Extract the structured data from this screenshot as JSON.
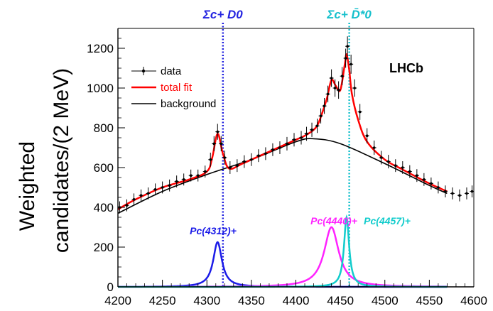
{
  "chart_data": {
    "type": "scatter",
    "title": "",
    "xlabel": "",
    "ylabel_line1": "Weighted",
    "ylabel_line2": "candidates/(2 MeV)",
    "xlim": [
      4200,
      4600
    ],
    "ylim": [
      0,
      1300
    ],
    "xticks": [
      4200,
      4250,
      4300,
      4350,
      4400,
      4450,
      4500,
      4550,
      4600
    ],
    "yticks": [
      0,
      200,
      400,
      600,
      800,
      1000,
      1200
    ],
    "grid": false,
    "legend": {
      "placement": "top-left",
      "entries": [
        {
          "label": "data",
          "color": "#000000",
          "style": "marker"
        },
        {
          "label": "total fit",
          "color": "#ff0000",
          "style": "line"
        },
        {
          "label": "background",
          "color": "#000000",
          "style": "line"
        }
      ]
    },
    "experiment_label": "LHCb",
    "thresholds": [
      {
        "label": "Σc+ D0",
        "x": 4318,
        "color": "#2323e0"
      },
      {
        "label": "Σc+ D̄*0",
        "x": 4460,
        "color": "#15c0cc"
      }
    ],
    "resonances": [
      {
        "label": "Pc(4312)+",
        "mass": 4312,
        "peak": 225,
        "width": 6,
        "color": "#1c1ce8"
      },
      {
        "label": "Pc(4440)+",
        "mass": 4440,
        "peak": 300,
        "width": 10,
        "color": "#ff22ff"
      },
      {
        "label": "Pc(4457)+",
        "mass": 4457,
        "peak": 350,
        "width": 3.5,
        "color": "#12cccc"
      }
    ],
    "background": {
      "x": [
        4200,
        4250,
        4300,
        4350,
        4400,
        4420,
        4450,
        4500,
        4550,
        4570
      ],
      "y": [
        370,
        480,
        565,
        640,
        730,
        745,
        720,
        620,
        510,
        470
      ]
    },
    "total_fit": {
      "x": [
        4200,
        4220,
        4250,
        4280,
        4300,
        4306,
        4312,
        4318,
        4325,
        4340,
        4360,
        4380,
        4400,
        4410,
        4420,
        4425,
        4430,
        4435,
        4440,
        4445,
        4450,
        4455,
        4457,
        4460,
        4463,
        4470,
        4480,
        4500,
        4520,
        4550,
        4570
      ],
      "y": [
        390,
        440,
        500,
        540,
        580,
        650,
        770,
        670,
        595,
        620,
        660,
        700,
        740,
        760,
        790,
        820,
        880,
        950,
        1040,
        1010,
        990,
        1120,
        1170,
        1090,
        970,
        840,
        730,
        640,
        590,
        520,
        480
      ]
    },
    "data_points": {
      "x": [
        4202,
        4210,
        4218,
        4226,
        4234,
        4242,
        4250,
        4258,
        4266,
        4274,
        4282,
        4290,
        4298,
        4304,
        4308,
        4312,
        4316,
        4320,
        4326,
        4334,
        4342,
        4350,
        4358,
        4366,
        4374,
        4382,
        4390,
        4398,
        4406,
        4412,
        4418,
        4424,
        4428,
        4432,
        4436,
        4440,
        4444,
        4448,
        4452,
        4456,
        4458,
        4462,
        4466,
        4472,
        4480,
        4488,
        4496,
        4504,
        4512,
        4520,
        4528,
        4536,
        4544,
        4552,
        4560,
        4568,
        4576,
        4584,
        4592,
        4598
      ],
      "y": [
        400,
        410,
        440,
        460,
        470,
        490,
        500,
        510,
        530,
        540,
        560,
        560,
        580,
        640,
        720,
        780,
        720,
        650,
        600,
        610,
        630,
        640,
        660,
        670,
        690,
        700,
        720,
        740,
        750,
        770,
        790,
        810,
        860,
        910,
        970,
        1050,
        1000,
        990,
        1060,
        1150,
        1210,
        1120,
        1000,
        880,
        760,
        700,
        650,
        630,
        610,
        600,
        580,
        560,
        540,
        520,
        500,
        480,
        470,
        460,
        470,
        480
      ],
      "err": [
        30,
        30,
        30,
        30,
        30,
        30,
        30,
        30,
        30,
        30,
        30,
        30,
        30,
        35,
        38,
        40,
        38,
        35,
        32,
        32,
        32,
        32,
        32,
        32,
        32,
        32,
        34,
        34,
        34,
        35,
        36,
        36,
        38,
        40,
        42,
        44,
        44,
        44,
        46,
        48,
        50,
        48,
        44,
        40,
        38,
        36,
        34,
        34,
        32,
        32,
        32,
        32,
        32,
        30,
        30,
        30,
        30,
        30,
        30,
        30
      ]
    }
  }
}
